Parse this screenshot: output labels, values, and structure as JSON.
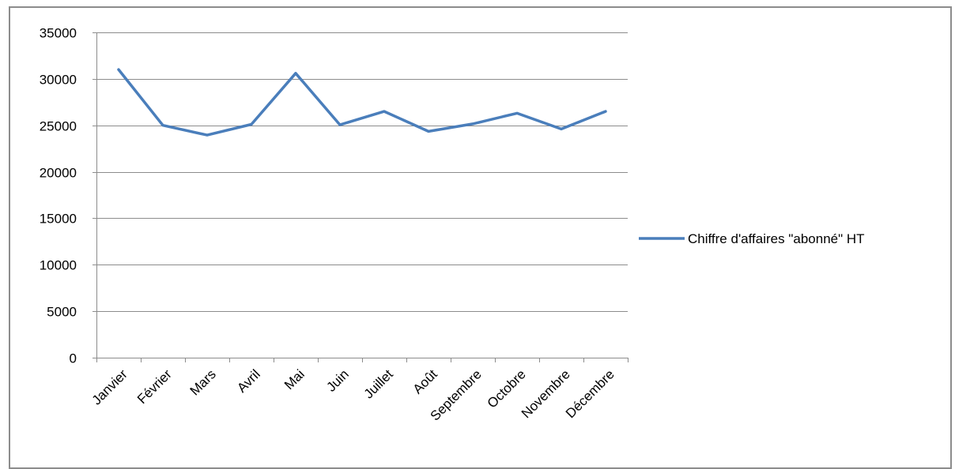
{
  "chart_data": {
    "type": "line",
    "categories": [
      "Janvier",
      "Février",
      "Mars",
      "Avril",
      "Mai",
      "Juin",
      "Juillet",
      "Août",
      "Septembre",
      "Octobre",
      "Novembre",
      "Décembre"
    ],
    "series": [
      {
        "name": "Chiffre d'affaires \"abonné\" HT",
        "values": [
          31000,
          25000,
          23950,
          25100,
          30600,
          25050,
          26500,
          24350,
          25150,
          26300,
          24600,
          26500
        ],
        "color": "#4a7ebb"
      }
    ],
    "ylim": [
      0,
      35000
    ],
    "yticks": [
      0,
      5000,
      10000,
      15000,
      20000,
      25000,
      30000,
      35000
    ],
    "grid": true,
    "legend_position": "right",
    "title": "",
    "xlabel": "",
    "ylabel": ""
  }
}
